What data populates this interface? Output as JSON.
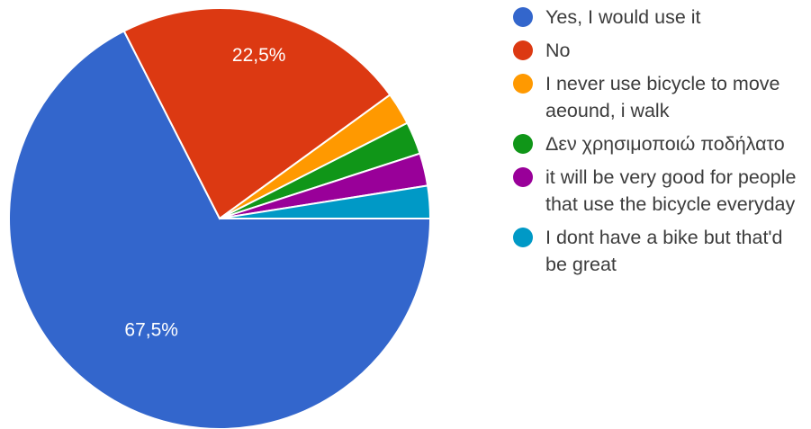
{
  "chart_data": {
    "type": "pie",
    "title": "",
    "slices": [
      {
        "label": "Yes, I would use it",
        "value": 67.5,
        "color": "#3366cc",
        "data_label": "67,5%"
      },
      {
        "label": "No",
        "value": 22.5,
        "color": "#dc3912",
        "data_label": "22,5%"
      },
      {
        "label": "I never use bicycle to move aeound, i walk",
        "value": 2.5,
        "color": "#ff9900",
        "data_label": ""
      },
      {
        "label": "Δεν χρησιμοποιώ ποδήλατο",
        "value": 2.5,
        "color": "#109618",
        "data_label": ""
      },
      {
        "label": "it will be very good for people that use the bicycle everyday",
        "value": 2.5,
        "color": "#990099",
        "data_label": ""
      },
      {
        "label": "I dont have a bike but that'd be great",
        "value": 2.5,
        "color": "#0099c6",
        "data_label": ""
      }
    ],
    "legend_position": "right"
  }
}
